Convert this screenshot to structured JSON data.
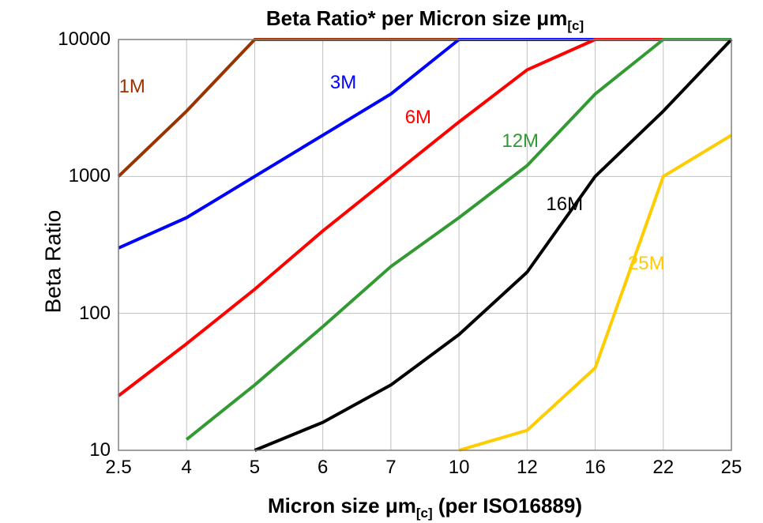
{
  "chart": {
    "type": "line",
    "title_prefix": "Beta Ratio* per Micron size ",
    "title_symbol": "μ",
    "title_m": "m",
    "title_sub": "[c]",
    "ylabel": "Beta Ratio",
    "xlabel_prefix": "Micron size ",
    "xlabel_symbol": "μ",
    "xlabel_m": "m",
    "xlabel_sub": "[c]",
    "xlabel_suffix": " (per ISO16889)",
    "title_fontsize": 26,
    "label_fontsize": 28,
    "tick_fontsize": 24,
    "background_color": "#ffffff",
    "grid_color": "#c0c0c0",
    "axis_color": "#808080",
    "line_width": 4,
    "x_ticks": [
      2.5,
      4,
      5,
      6,
      7,
      10,
      12,
      16,
      22,
      25
    ],
    "y_ticks": [
      10,
      100,
      1000,
      10000
    ],
    "y_scale": "log",
    "ylim": [
      10,
      10000
    ],
    "series": [
      {
        "name": "1M",
        "label": "1M",
        "color": "#993300",
        "label_color": "#993300",
        "label_x": 2.8,
        "label_y": 4500,
        "points": [
          [
            2.5,
            1000
          ],
          [
            4,
            3000
          ],
          [
            5,
            10000
          ],
          [
            25,
            10000
          ]
        ]
      },
      {
        "name": "3M",
        "label": "3M",
        "color": "#0000ff",
        "label_color": "#0000ff",
        "label_x": 6.3,
        "label_y": 4800,
        "points": [
          [
            2.5,
            300
          ],
          [
            4,
            500
          ],
          [
            5,
            1000
          ],
          [
            6,
            2000
          ],
          [
            7,
            4000
          ],
          [
            10,
            10000
          ],
          [
            25,
            10000
          ]
        ]
      },
      {
        "name": "6M",
        "label": "6M",
        "color": "#ff0000",
        "label_color": "#ff0000",
        "label_x": 8.2,
        "label_y": 2700,
        "points": [
          [
            2.5,
            25
          ],
          [
            4,
            60
          ],
          [
            5,
            150
          ],
          [
            6,
            400
          ],
          [
            7,
            1000
          ],
          [
            10,
            2500
          ],
          [
            12,
            6000
          ],
          [
            16,
            10000
          ],
          [
            25,
            10000
          ]
        ]
      },
      {
        "name": "12M",
        "label": "12M",
        "color": "#339933",
        "label_color": "#339933",
        "label_x": 11.8,
        "label_y": 1800,
        "points": [
          [
            4,
            12
          ],
          [
            5,
            30
          ],
          [
            6,
            80
          ],
          [
            7,
            220
          ],
          [
            10,
            500
          ],
          [
            12,
            1200
          ],
          [
            16,
            4000
          ],
          [
            22,
            10000
          ],
          [
            25,
            10000
          ]
        ]
      },
      {
        "name": "16M",
        "label": "16M",
        "color": "#000000",
        "label_color": "#000000",
        "label_x": 14.2,
        "label_y": 620,
        "points": [
          [
            5,
            10
          ],
          [
            6,
            16
          ],
          [
            7,
            30
          ],
          [
            10,
            70
          ],
          [
            12,
            200
          ],
          [
            16,
            1000
          ],
          [
            22,
            3000
          ],
          [
            25,
            10000
          ]
        ]
      },
      {
        "name": "25M",
        "label": "25M",
        "color": "#ffcc00",
        "label_color": "#ffcc00",
        "label_x": 20.5,
        "label_y": 230,
        "points": [
          [
            10,
            10
          ],
          [
            12,
            14
          ],
          [
            16,
            40
          ],
          [
            22,
            1000
          ],
          [
            25,
            2000
          ]
        ]
      }
    ]
  }
}
